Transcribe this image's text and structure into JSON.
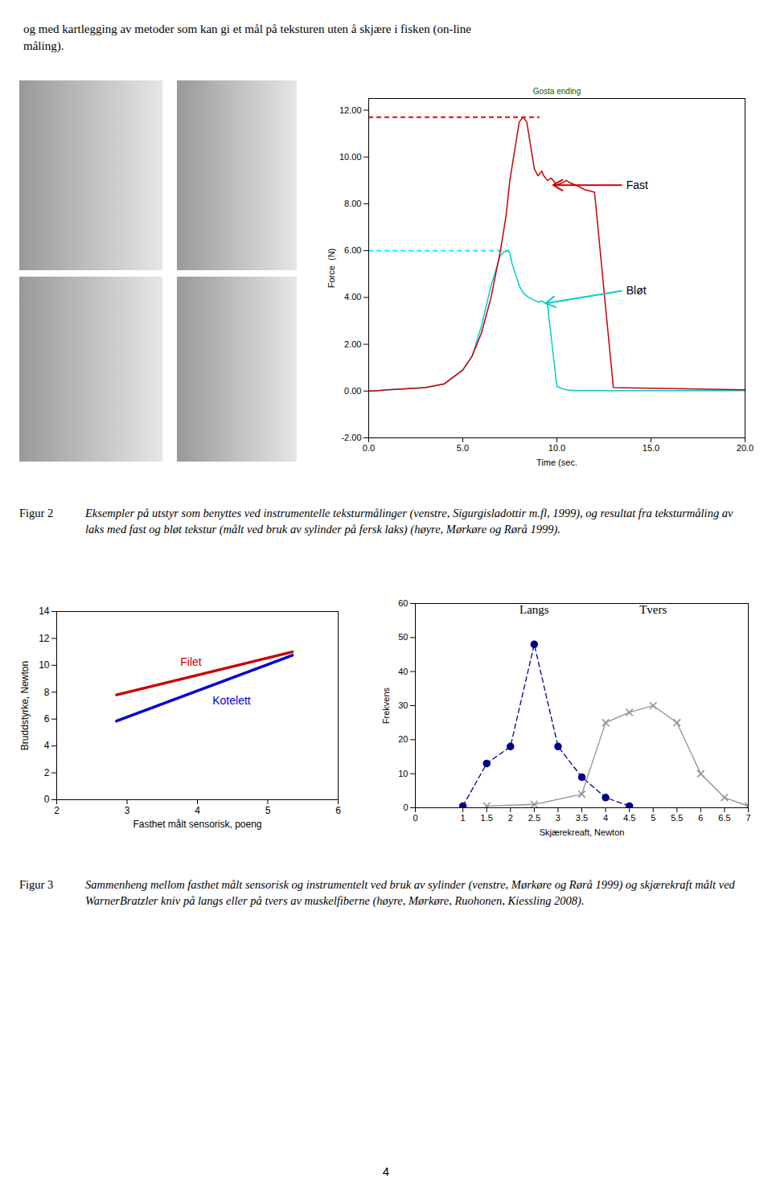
{
  "header": [
    "og med kartlegging av metoder som kan gi et mål på teksturen uten å skjære i fisken (on-line",
    "måling)."
  ],
  "captions": [
    {
      "label": "Figur 2",
      "text": "Eksempler på utstyr som benyttes ved instrumentelle teksturmålinger (venstre, Sigurgisladottir m.fl, 1999), og resultat fra teksturmåling av laks med fast og bløt tekstur (målt ved bruk av sylinder på fersk laks) (høyre, Mørkøre og Rørå 1999)."
    },
    {
      "label": "Figur 3",
      "text": "Sammenheng mellom fasthet målt sensorisk og instrumentelt ved bruk av sylinder (venstre, Mørkøre og Rørå 1999) og skjærekraft målt ved WarnerBratzler kniv på langs eller på tvers av muskelfiberne (høyre, Mørkøre, Ruohonen, Kiessling 2008)."
    }
  ],
  "page_number": "4",
  "chart_data": [
    {
      "type": "line",
      "xlabel": "Time (sec.",
      "ylabel": "Force  (N)",
      "xlim": [
        0.0,
        20.0
      ],
      "ylim": [
        -2.0,
        12.5
      ],
      "xticks": [
        {
          "value": 0,
          "label": "0.0"
        },
        {
          "value": 5,
          "label": "5.0"
        },
        {
          "value": 10,
          "label": "10.0"
        },
        {
          "value": 15,
          "label": "15.0"
        },
        {
          "value": 20,
          "label": "20.0"
        }
      ],
      "yticks": [
        {
          "value": -2,
          "label": "-2.00"
        },
        {
          "value": 0,
          "label": "0.00"
        },
        {
          "value": 2,
          "label": "2.00"
        },
        {
          "value": 4,
          "label": "4.00"
        },
        {
          "value": 6,
          "label": "6.00"
        },
        {
          "value": 8,
          "label": "8.00"
        },
        {
          "value": 10,
          "label": "10.00"
        },
        {
          "value": 12,
          "label": "12.00"
        }
      ],
      "grid": false,
      "series": [
        {
          "color": "#00cccc",
          "x": [
            0.0,
            0.5,
            1.0,
            2.0,
            3.0,
            4.0,
            5.0,
            5.5,
            6.0,
            6.5,
            7.0,
            7.2,
            7.4,
            7.5,
            7.6,
            7.8,
            8.0,
            8.2,
            8.5,
            9.0,
            9.2,
            9.5,
            10.0,
            10.3,
            10.5,
            11.0,
            20.0
          ],
          "values": [
            0.0,
            0.02,
            0.05,
            0.1,
            0.15,
            0.3,
            0.9,
            1.5,
            2.8,
            4.5,
            5.8,
            5.95,
            6.0,
            5.9,
            5.5,
            5.0,
            4.5,
            4.2,
            4.0,
            3.8,
            3.85,
            3.7,
            0.2,
            0.1,
            0.05,
            0.02,
            0.02
          ]
        },
        {
          "color": "#cc0000",
          "x": [
            0.0,
            0.5,
            1.0,
            2.0,
            3.0,
            4.0,
            5.0,
            5.5,
            6.0,
            6.5,
            7.0,
            7.3,
            7.5,
            7.8,
            8.0,
            8.2,
            8.4,
            8.6,
            8.8,
            9.0,
            9.1,
            9.2,
            9.3,
            9.5,
            9.7,
            10.0,
            10.3,
            10.5,
            10.7,
            11.0,
            11.5,
            12.0,
            13.0,
            20.0
          ],
          "values": [
            0.0,
            0.02,
            0.05,
            0.1,
            0.15,
            0.3,
            0.9,
            1.5,
            2.5,
            4.0,
            6.0,
            7.5,
            9.0,
            10.5,
            11.5,
            11.7,
            11.5,
            10.5,
            9.5,
            9.2,
            9.3,
            9.4,
            9.2,
            9.0,
            9.1,
            8.8,
            8.9,
            9.0,
            8.9,
            8.8,
            8.6,
            8.5,
            0.15,
            0.05
          ]
        }
      ],
      "hlines": [
        {
          "y": 11.7,
          "xmin": 0,
          "xmax": 9.1,
          "color": "red",
          "line_style": "dashed"
        },
        {
          "y": 6.0,
          "xmin": 0,
          "xmax": 7.5,
          "color": "cyan",
          "line_style": "dashed"
        }
      ],
      "annotations": [
        {
          "text": "Fast",
          "x": 13.6,
          "y": 8.8,
          "arrow_to": [
            9.8,
            8.8
          ],
          "color": "#cc0000"
        },
        {
          "text": "Bløt",
          "x": 13.6,
          "y": 4.3,
          "arrow_to": [
            9.4,
            3.75
          ],
          "color": "#00cccc"
        },
        {
          "text": "Gosta ending",
          "color": "#006600"
        }
      ]
    },
    {
      "type": "line",
      "xlabel": "Fasthet målt sensorisk, poeng",
      "ylabel": "Bruddstyrke, Newton",
      "xlim": [
        2,
        6
      ],
      "ylim": [
        0,
        14
      ],
      "xticks": [
        2,
        3,
        4,
        5,
        6
      ],
      "yticks": [
        0,
        2,
        4,
        6,
        8,
        10,
        12,
        14
      ],
      "grid": false,
      "series": [
        {
          "name": "Filet",
          "color": "#cc0000",
          "x": [
            2.85,
            5.35
          ],
          "values": [
            7.8,
            11.0
          ]
        },
        {
          "name": "Kotelett",
          "color": "#0000cc",
          "x": [
            2.85,
            5.35
          ],
          "values": [
            5.85,
            10.75
          ]
        }
      ]
    },
    {
      "type": "line",
      "xlabel": "Skjærekreaft, Newton",
      "ylabel": "Frekvens",
      "xlim": [
        0,
        7
      ],
      "ylim": [
        0,
        60
      ],
      "xticks": [
        0,
        1,
        1.5,
        2,
        2.5,
        3,
        3.5,
        4,
        4.5,
        5,
        5.5,
        6,
        6.5,
        7
      ],
      "yticks": [
        0,
        10,
        20,
        30,
        40,
        50,
        60
      ],
      "grid": false,
      "series": [
        {
          "name": "Langs",
          "color": "#00008b",
          "marker": "circle",
          "line_style": "dashed",
          "x": [
            1.0,
            1.5,
            2.0,
            2.5,
            3.0,
            3.5,
            4.0,
            4.5
          ],
          "values": [
            0.5,
            13.0,
            18.0,
            48.0,
            18.0,
            9.0,
            3.0,
            0.5
          ]
        },
        {
          "name": "Tvers",
          "color": "#909090",
          "marker": "x",
          "line_style": "solid",
          "x": [
            1.5,
            2.5,
            3.5,
            4.0,
            4.5,
            5.0,
            5.5,
            6.0,
            6.5,
            7.0
          ],
          "values": [
            0.5,
            1.0,
            4.0,
            25.0,
            28.0,
            30.0,
            25.0,
            10.0,
            3.0,
            0.5
          ]
        }
      ]
    }
  ]
}
